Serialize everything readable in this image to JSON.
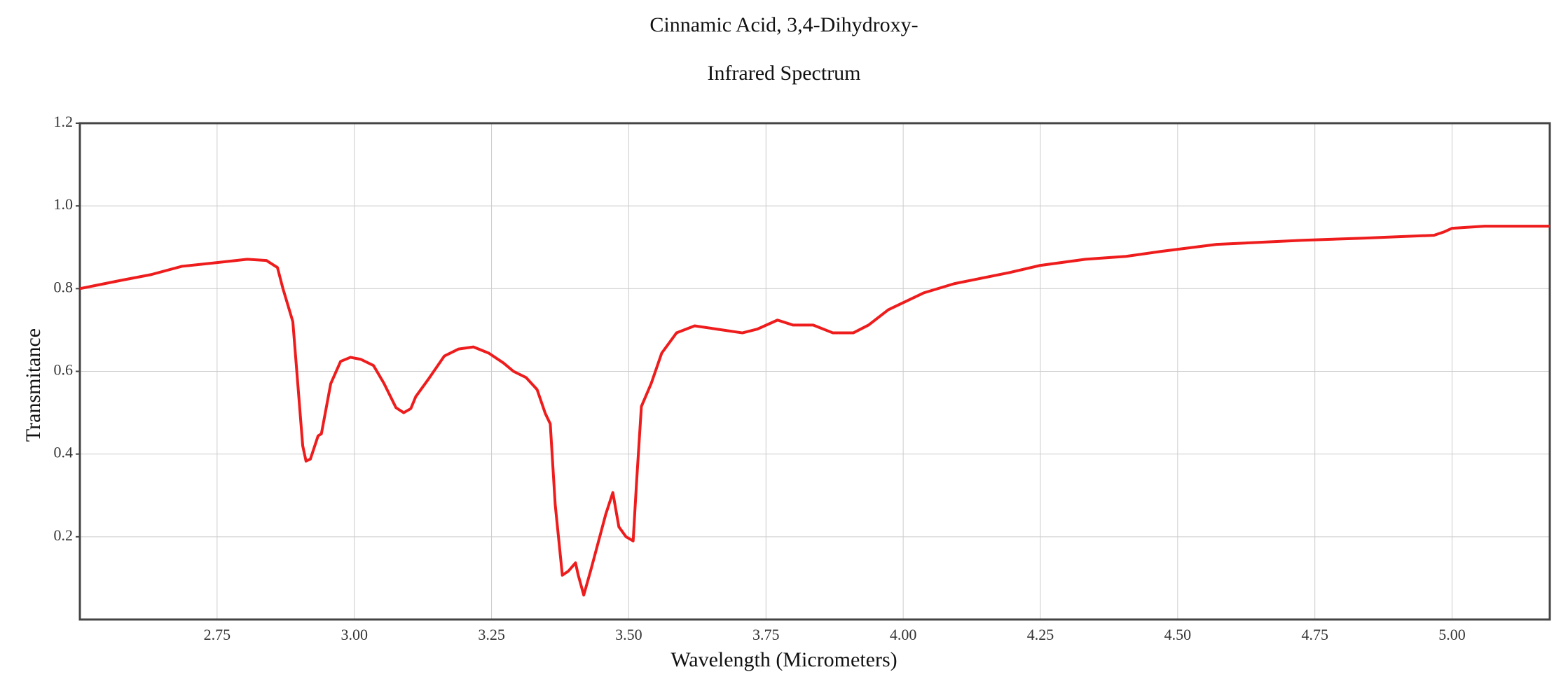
{
  "chart_data": {
    "type": "line",
    "title": "Cinnamic Acid, 3,4-Dihydroxy-",
    "subtitle": "Infrared Spectrum",
    "x_label": "Wavelength (Micrometers)",
    "y_label": "Transmitance",
    "color": "#ee1c1c",
    "grid": true,
    "xlim": [
      2.5,
      5.178
    ],
    "ylim": [
      0,
      1.2
    ],
    "xticks": [
      {
        "value": 2.75,
        "label": "2.75"
      },
      {
        "value": 3,
        "label": "3.00"
      },
      {
        "value": 3.25,
        "label": "3.25"
      },
      {
        "value": 3.5,
        "label": "3.50"
      },
      {
        "value": 3.75,
        "label": "3.75"
      },
      {
        "value": 4,
        "label": "4.00"
      },
      {
        "value": 4.25,
        "label": "4.25"
      },
      {
        "value": 4.5,
        "label": "4.50"
      },
      {
        "value": 4.75,
        "label": "4.75"
      },
      {
        "value": 5,
        "label": "5.00"
      }
    ],
    "yticks": [
      0.2,
      0.4,
      0.6,
      0.8,
      {
        "value": 1,
        "label": "1.0"
      },
      1.2
    ],
    "x": [
      2.5,
      2.575,
      2.63,
      2.686,
      2.75,
      2.805,
      2.84,
      2.86,
      2.87,
      2.888,
      2.906,
      2.912,
      2.92,
      2.934,
      2.94,
      2.957,
      2.975,
      2.993,
      3.012,
      3.035,
      3.054,
      3.076,
      3.09,
      3.103,
      3.112,
      3.136,
      3.164,
      3.19,
      3.217,
      3.245,
      3.272,
      3.29,
      3.313,
      3.333,
      3.348,
      3.357,
      3.366,
      3.379,
      3.39,
      3.403,
      3.408,
      3.418,
      3.431,
      3.458,
      3.471,
      3.482,
      3.495,
      3.508,
      3.514,
      3.523,
      3.541,
      3.56,
      3.587,
      3.62,
      3.661,
      3.707,
      3.734,
      3.771,
      3.799,
      3.836,
      3.872,
      3.909,
      3.937,
      3.973,
      4.038,
      4.093,
      4.194,
      4.249,
      4.332,
      4.406,
      4.47,
      4.571,
      4.728,
      4.838,
      4.967,
      4.985,
      5.0,
      5.059,
      5.178
    ],
    "values": [
      0.8,
      0.82,
      0.834,
      0.854,
      0.863,
      0.871,
      0.868,
      0.851,
      0.8,
      0.72,
      0.42,
      0.383,
      0.388,
      0.444,
      0.449,
      0.57,
      0.624,
      0.634,
      0.629,
      0.614,
      0.571,
      0.512,
      0.5,
      0.51,
      0.539,
      0.583,
      0.637,
      0.654,
      0.659,
      0.644,
      0.62,
      0.6,
      0.585,
      0.556,
      0.498,
      0.473,
      0.278,
      0.107,
      0.117,
      0.137,
      0.107,
      0.059,
      0.12,
      0.254,
      0.307,
      0.224,
      0.2,
      0.19,
      0.327,
      0.515,
      0.571,
      0.644,
      0.693,
      0.71,
      0.702,
      0.693,
      0.702,
      0.724,
      0.712,
      0.712,
      0.693,
      0.693,
      0.712,
      0.749,
      0.79,
      0.812,
      0.839,
      0.856,
      0.871,
      0.878,
      0.89,
      0.907,
      0.917,
      0.922,
      0.929,
      0.937,
      0.946,
      0.951,
      0.951
    ]
  }
}
